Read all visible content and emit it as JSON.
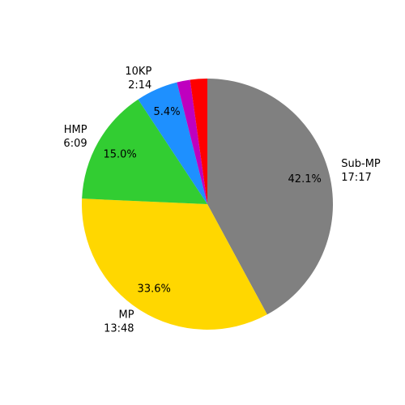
{
  "chart_data": {
    "type": "pie",
    "categories": [
      "Sub-MP",
      "MP",
      "HMP",
      "10KP",
      null,
      null
    ],
    "times": [
      "17:17",
      "13:48",
      "6:09",
      "2:14",
      null,
      null
    ],
    "values": [
      42.1,
      33.6,
      15.0,
      5.4,
      1.7,
      2.2
    ],
    "value_labels": [
      "42.1%",
      "33.6%",
      "15.0%",
      "5.4%",
      null,
      null
    ],
    "colors": [
      "#808080",
      "#ffd700",
      "#32cd32",
      "#1e90ff",
      "#bf00bf",
      "#ff0000"
    ]
  }
}
